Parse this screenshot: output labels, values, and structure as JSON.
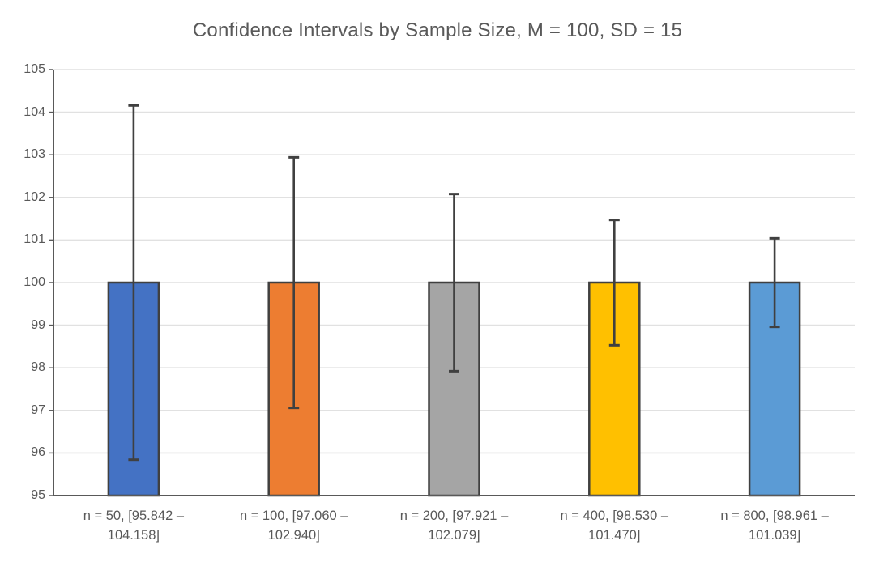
{
  "chart_data": {
    "type": "bar",
    "title": "Confidence Intervals by Sample Size, M = 100, SD = 15",
    "categories": [
      "n = 50, [95.842 – 104.158]",
      "n = 100, [97.060 – 102.940]",
      "n = 200, [97.921 – 102.079]",
      "n = 400, [98.530 – 101.470]",
      "n = 800, [98.961 – 101.039]"
    ],
    "sample_sizes": [
      50,
      100,
      200,
      400,
      800
    ],
    "values": [
      100,
      100,
      100,
      100,
      100
    ],
    "error_bars": {
      "low": [
        95.842,
        97.06,
        97.921,
        98.53,
        98.961
      ],
      "high": [
        104.158,
        102.94,
        102.079,
        101.47,
        101.039
      ]
    },
    "xlabel": "",
    "ylabel": "",
    "ylim": [
      95,
      105
    ],
    "yticks": [
      95,
      96,
      97,
      98,
      99,
      100,
      101,
      102,
      103,
      104,
      105
    ],
    "grid": true,
    "legend": "none",
    "colors": {
      "bar_fills": [
        "#4472C4",
        "#ED7D31",
        "#A5A5A5",
        "#FFC000",
        "#5B9BD5"
      ],
      "bar_border": "#404040",
      "error_bar": "#404040",
      "gridline": "#E1E1E1",
      "axis": "#595959",
      "text": "#595959",
      "background": "#FFFFFF"
    }
  }
}
